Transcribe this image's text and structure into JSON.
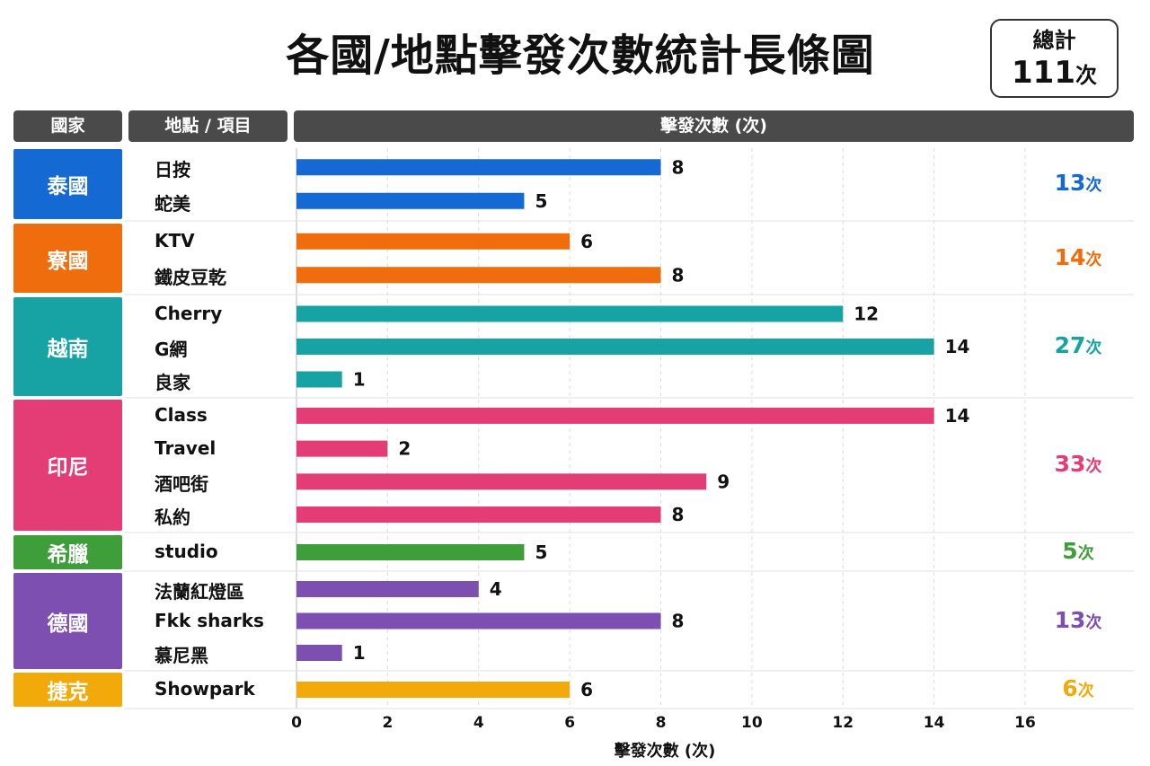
{
  "title": "各國/地點擊發次數統計長條圖",
  "total": {
    "label": "總計",
    "value": "111",
    "unit": "次"
  },
  "headers": {
    "country": "國家",
    "item": "地點 / 項目",
    "count": "擊發次數 (次)"
  },
  "chart_data": {
    "type": "bar",
    "orientation": "horizontal",
    "title": "各國/地點擊發次數統計長條圖",
    "xlabel": "擊發次數 (次)",
    "xlim": [
      0,
      16
    ],
    "xticks": [
      0,
      2,
      4,
      6,
      8,
      10,
      12,
      14,
      16
    ],
    "grid": true,
    "groups": [
      {
        "country": "泰國",
        "color": "#1469d2",
        "total": "13",
        "unit": "次",
        "items": [
          {
            "label": "日按",
            "value": 8
          },
          {
            "label": "蛇美",
            "value": 5
          }
        ]
      },
      {
        "country": "寮國",
        "color": "#ef6d0c",
        "total": "14",
        "unit": "次",
        "items": [
          {
            "label": "KTV",
            "value": 6
          },
          {
            "label": "鐵皮豆乾",
            "value": 8
          }
        ]
      },
      {
        "country": "越南",
        "color": "#17a3a3",
        "total": "27",
        "unit": "次",
        "items": [
          {
            "label": "Cherry",
            "value": 12
          },
          {
            "label": "G網",
            "value": 14
          },
          {
            "label": "良家",
            "value": 1
          }
        ]
      },
      {
        "country": "印尼",
        "color": "#e43c74",
        "total": "33",
        "unit": "次",
        "items": [
          {
            "label": "Class",
            "value": 14
          },
          {
            "label": "Travel",
            "value": 2
          },
          {
            "label": "酒吧街",
            "value": 9
          },
          {
            "label": "私約",
            "value": 8
          }
        ]
      },
      {
        "country": "希臘",
        "color": "#3e9e3a",
        "total": "5",
        "unit": "次",
        "items": [
          {
            "label": "studio",
            "value": 5
          }
        ]
      },
      {
        "country": "德國",
        "color": "#7d4fb0",
        "total": "13",
        "unit": "次",
        "items": [
          {
            "label": "法蘭紅燈區",
            "value": 4
          },
          {
            "label": "Fkk sharks",
            "value": 8
          },
          {
            "label": "慕尼黑",
            "value": 1
          }
        ]
      },
      {
        "country": "捷克",
        "color": "#f2aa0a",
        "total": "6",
        "unit": "次",
        "items": [
          {
            "label": "Showpark",
            "value": 6
          }
        ]
      }
    ]
  }
}
